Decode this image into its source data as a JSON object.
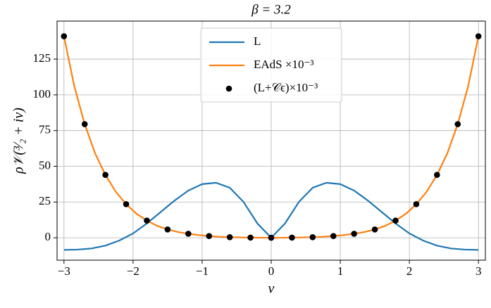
{
  "chart_data": {
    "type": "line",
    "title": "β = 3.2",
    "xlabel": "ν",
    "ylabel": "ρ𝒱(³⁄₂ + iν)",
    "xlim": [
      -3.1,
      3.1
    ],
    "ylim": [
      -15.7,
      151.6
    ],
    "xticks": [
      {
        "value": -3,
        "label": "−3"
      },
      {
        "value": -2,
        "label": "−2"
      },
      {
        "value": -1,
        "label": "−1"
      },
      0,
      1,
      2,
      3
    ],
    "yticks": [
      0,
      25,
      50,
      75,
      100,
      125
    ],
    "grid": true,
    "legend": "upper center",
    "series": [
      {
        "name": "L",
        "color": "#1f77b4",
        "style": "line",
        "x": [
          -3,
          -2.8,
          -2.6,
          -2.4,
          -2.2,
          -2,
          -1.8,
          -1.6,
          -1.4,
          -1.2,
          -1,
          -0.8,
          -0.6,
          -0.4,
          -0.2,
          0,
          0.2,
          0.4,
          0.6,
          0.8,
          1,
          1.2,
          1.4,
          1.6,
          1.8,
          2,
          2.2,
          2.4,
          2.6,
          2.8,
          3
        ],
        "values": [
          -8.5,
          -8.3,
          -7.5,
          -5.5,
          -2,
          3,
          10,
          18,
          26,
          33,
          37.5,
          38.5,
          35,
          25,
          10,
          0,
          10,
          25,
          35,
          38.5,
          37.5,
          33,
          26,
          18,
          10,
          3,
          -2,
          -5.5,
          -7.5,
          -8.3,
          -8.5
        ]
      },
      {
        "name": "EAdS ×10⁻³",
        "color": "#ff7f0e",
        "style": "line",
        "x": [
          -3,
          -2.85,
          -2.7,
          -2.55,
          -2.4,
          -2.25,
          -2.1,
          -1.95,
          -1.8,
          -1.65,
          -1.5,
          -1.35,
          -1.2,
          -1.05,
          -0.9,
          -0.75,
          -0.6,
          -0.45,
          -0.3,
          -0.15,
          0,
          0.15,
          0.3,
          0.45,
          0.6,
          0.75,
          0.9,
          1.05,
          1.2,
          1.35,
          1.5,
          1.65,
          1.8,
          1.95,
          2.1,
          2.25,
          2.4,
          2.55,
          2.7,
          2.85,
          3
        ],
        "values": [
          141,
          105.9,
          79.5,
          59.1,
          44,
          32.2,
          23.5,
          16.8,
          12,
          8.3,
          5.8,
          4.0,
          2.8,
          1.85,
          1.2,
          0.7,
          0.4,
          0.2,
          0.1,
          0.02,
          0,
          0.02,
          0.1,
          0.2,
          0.4,
          0.7,
          1.2,
          1.85,
          2.8,
          4.0,
          5.8,
          8.3,
          12,
          16.8,
          23.5,
          32.2,
          44,
          59.1,
          79.5,
          105.9,
          141
        ]
      },
      {
        "name": "(L+𝒞ϵ)×10⁻³",
        "color": "#000000",
        "style": "scatter",
        "x": [
          -3,
          -2.7,
          -2.4,
          -2.1,
          -1.8,
          -1.5,
          -1.2,
          -0.9,
          -0.6,
          -0.3,
          0,
          0.3,
          0.6,
          0.9,
          1.2,
          1.5,
          1.8,
          2.1,
          2.4,
          2.7,
          3
        ],
        "values": [
          141,
          79.5,
          44,
          23.5,
          12,
          5.8,
          2.8,
          1.2,
          0.4,
          0.1,
          0,
          0.1,
          0.4,
          1.2,
          2.8,
          5.8,
          12,
          23.5,
          44,
          79.5,
          141
        ]
      }
    ]
  }
}
